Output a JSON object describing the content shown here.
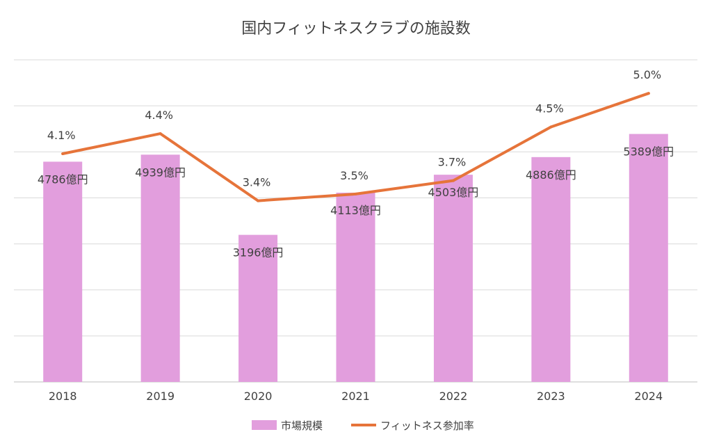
{
  "chart_data": {
    "type": "bar+line",
    "title": "国内フィットネスクラブの施設数",
    "categories": [
      "2018",
      "2019",
      "2020",
      "2021",
      "2022",
      "2023",
      "2024"
    ],
    "series": [
      {
        "name": "市場規模",
        "kind": "bar",
        "color": "#e29edd",
        "values": [
          4786,
          4939,
          3196,
          4113,
          4503,
          4886,
          5389
        ],
        "labels": [
          "4786億円",
          "4939億円",
          "3196億円",
          "4113億円",
          "4503億円",
          "4886億円",
          "5389億円"
        ]
      },
      {
        "name": "フィットネス参加率",
        "kind": "line",
        "color": "#e6743a",
        "values": [
          4.1,
          4.4,
          3.4,
          3.5,
          3.7,
          4.5,
          5.0
        ],
        "labels": [
          "4.1%",
          "4.4%",
          "3.4%",
          "3.5%",
          "3.7%",
          "4.5%",
          "5.0%"
        ]
      }
    ],
    "bar_axis": {
      "min": 0,
      "max": 7000
    },
    "line_axis": {
      "min": 0.7,
      "max": 5.5
    },
    "grid": true,
    "legend": "bottom-center"
  }
}
